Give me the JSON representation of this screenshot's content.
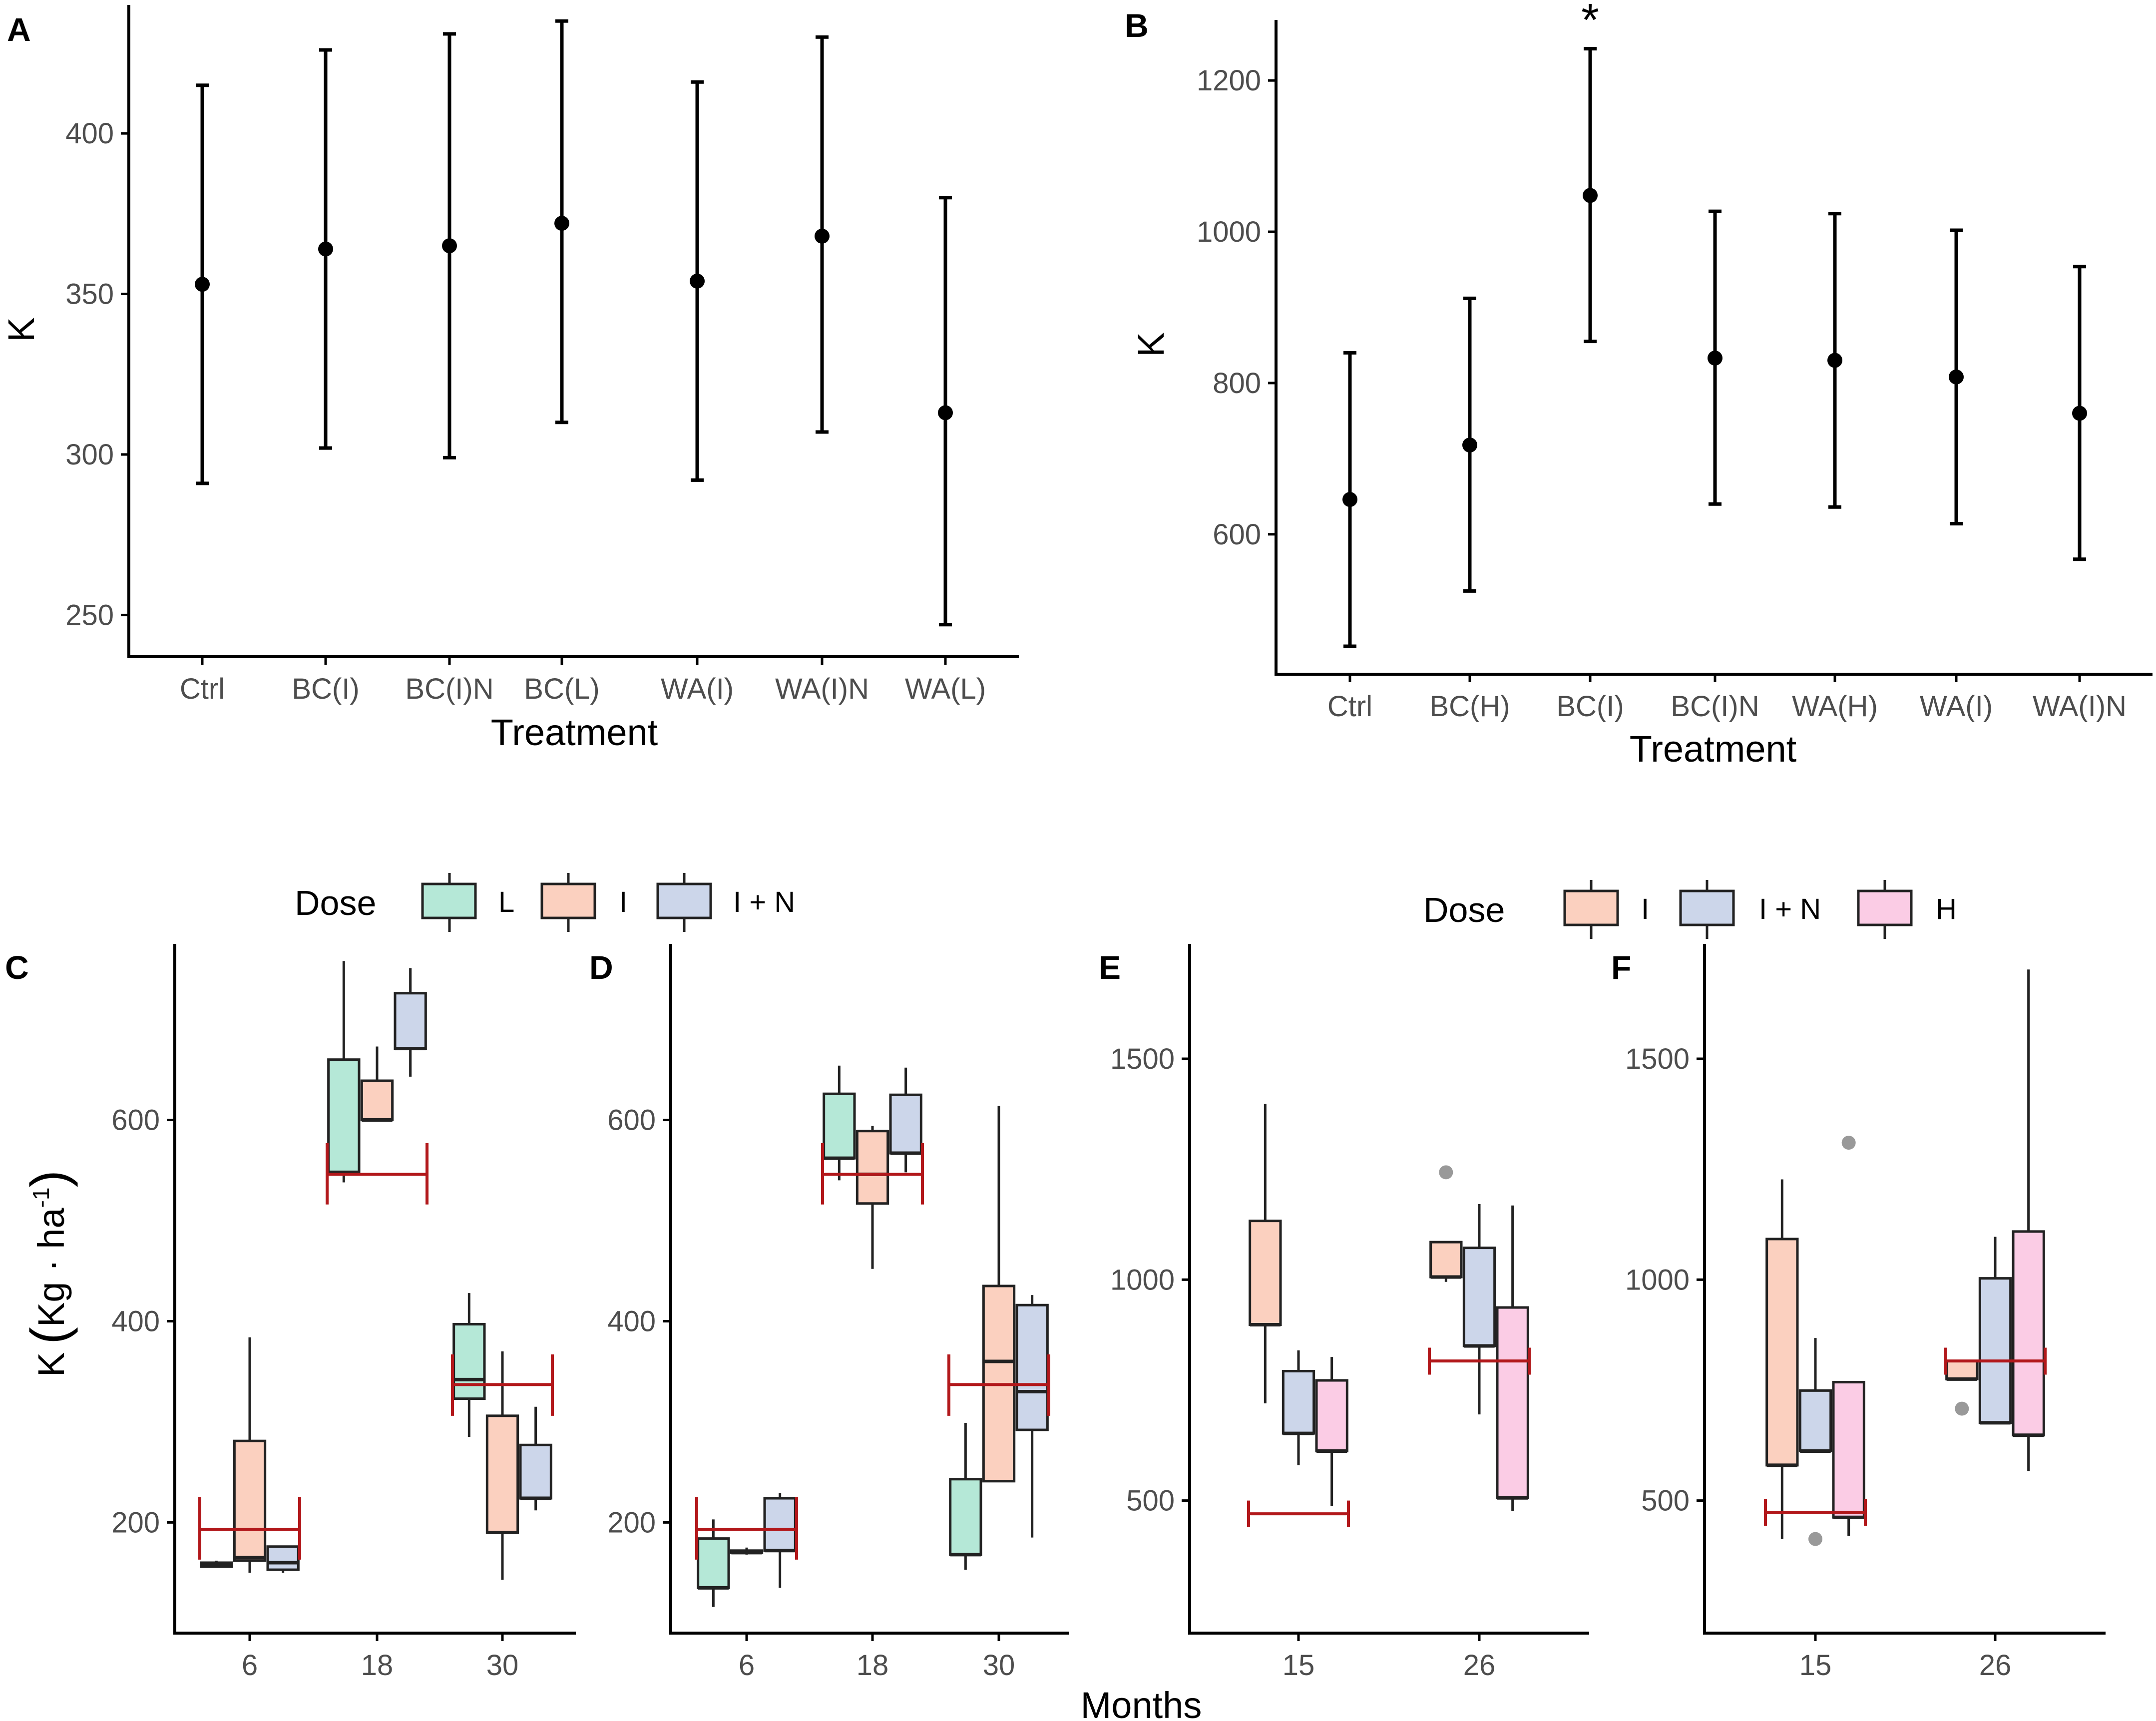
{
  "colors": {
    "L": "#b5e8d7",
    "I": "#fbd0bf",
    "I + N": "#ccd6ea",
    "H": "#fbcce5",
    "ref": "#b2181b",
    "outlier": "#999999",
    "ink": "#222222"
  },
  "legends": {
    "cd": {
      "title": "Dose",
      "items": [
        "L",
        "I",
        "I + N"
      ]
    },
    "ef": {
      "title": "Dose",
      "items": [
        "I",
        "I + N",
        "H"
      ]
    }
  },
  "shared_xlabel": "Months",
  "chart_data": [
    {
      "panel": "A",
      "type": "errorbar",
      "xlabel": "Treatment",
      "ylabel": "K",
      "categories": [
        "Ctrl",
        "BC(I)",
        "BC(I)N",
        "BC(L)",
        "WA(I)",
        "WA(I)N",
        "WA(L)"
      ],
      "ylim": [
        237,
        440
      ],
      "yticks": [
        250,
        300,
        350,
        400
      ],
      "mean": [
        353,
        364,
        365,
        372,
        354,
        368,
        313
      ],
      "lower": [
        291,
        302,
        299,
        310,
        292,
        307,
        247
      ],
      "upper": [
        415,
        426,
        431,
        435,
        416,
        430,
        380
      ]
    },
    {
      "panel": "B",
      "type": "errorbar",
      "xlabel": "Treatment",
      "ylabel": "K",
      "categories": [
        "Ctrl",
        "BC(H)",
        "BC(I)",
        "BC(I)N",
        "WA(H)",
        "WA(I)",
        "WA(I)N"
      ],
      "ylim": [
        415,
        1280
      ],
      "yticks": [
        600,
        800,
        1000,
        1200
      ],
      "mean": [
        646,
        718,
        1048,
        833,
        830,
        808,
        760
      ],
      "lower": [
        452,
        525,
        855,
        640,
        636,
        614,
        567
      ],
      "upper": [
        840,
        912,
        1242,
        1027,
        1024,
        1002,
        954
      ],
      "annotations": [
        {
          "category": "BC(I)",
          "text": "*"
        }
      ]
    },
    {
      "panel": "C",
      "type": "box",
      "ylabel": "K (Kg · ha-1)",
      "ylabel_main": "K",
      "ylabel_unit": "Kg · ha",
      "ylabel_exp": "-1",
      "categories": [
        "6",
        "18",
        "30"
      ],
      "ylim": [
        90,
        775
      ],
      "yticks": [
        200,
        400,
        600
      ],
      "series": [
        {
          "name": "L",
          "boxes": [
            {
              "q1": 156,
              "median": 158,
              "q3": 160,
              "lo": 156,
              "hi": 162
            },
            {
              "q1": 548,
              "median": 548,
              "q3": 660,
              "lo": 538,
              "hi": 758
            },
            {
              "q1": 323,
              "median": 342,
              "q3": 397,
              "lo": 285,
              "hi": 428
            }
          ]
        },
        {
          "name": "I",
          "boxes": [
            {
              "q1": 162,
              "median": 165,
              "q3": 281,
              "lo": 150,
              "hi": 384
            },
            {
              "q1": 600,
              "median": 600,
              "q3": 639,
              "lo": 600,
              "hi": 673
            },
            {
              "q1": 190,
              "median": 190,
              "q3": 306,
              "lo": 143,
              "hi": 370
            }
          ]
        },
        {
          "name": "I + N",
          "boxes": [
            {
              "q1": 153,
              "median": 160,
              "q3": 176,
              "lo": 150,
              "hi": 176
            },
            {
              "q1": 671,
              "median": 671,
              "q3": 726,
              "lo": 643,
              "hi": 751
            },
            {
              "q1": 224,
              "median": 224,
              "q3": 277,
              "lo": 212,
              "hi": 315
            }
          ]
        }
      ],
      "reference": [
        {
          "category": "6",
          "value": 193,
          "lo": 163,
          "hi": 225
        },
        {
          "category": "18",
          "value": 546,
          "lo": 516,
          "hi": 577
        },
        {
          "category": "30",
          "value": 337,
          "lo": 306,
          "hi": 367
        }
      ]
    },
    {
      "panel": "D",
      "type": "box",
      "categories": [
        "6",
        "18",
        "30"
      ],
      "ylim": [
        90,
        775
      ],
      "yticks": [
        200,
        400,
        600
      ],
      "series": [
        {
          "name": "L",
          "boxes": [
            {
              "q1": 135,
              "median": 135,
              "q3": 184,
              "lo": 116,
              "hi": 203
            },
            {
              "q1": 562,
              "median": 562,
              "q3": 626,
              "lo": 540,
              "hi": 654
            },
            {
              "q1": 168,
              "median": 168,
              "q3": 243,
              "lo": 153,
              "hi": 299
            }
          ]
        },
        {
          "name": "I",
          "boxes": [
            {
              "q1": 170,
              "median": 170,
              "q3": 172,
              "lo": 168,
              "hi": 175
            },
            {
              "q1": 517,
              "median": 546,
              "q3": 589,
              "lo": 452,
              "hi": 594
            },
            {
              "q1": 241,
              "median": 360,
              "q3": 435,
              "lo": 241,
              "hi": 614
            }
          ]
        },
        {
          "name": "I + N",
          "boxes": [
            {
              "q1": 172,
              "median": 172,
              "q3": 224,
              "lo": 135,
              "hi": 229
            },
            {
              "q1": 567,
              "median": 567,
              "q3": 625,
              "lo": 548,
              "hi": 652
            },
            {
              "q1": 292,
              "median": 330,
              "q3": 416,
              "lo": 185,
              "hi": 426
            }
          ]
        }
      ],
      "reference": [
        {
          "category": "6",
          "value": 193,
          "lo": 163,
          "hi": 225
        },
        {
          "category": "18",
          "value": 546,
          "lo": 516,
          "hi": 577
        },
        {
          "category": "30",
          "value": 337,
          "lo": 306,
          "hi": 367
        }
      ]
    },
    {
      "panel": "E",
      "type": "box",
      "categories": [
        "15",
        "26"
      ],
      "ylim": [
        200,
        1760
      ],
      "yticks": [
        500,
        1000,
        1500
      ],
      "series": [
        {
          "name": "I",
          "boxes": [
            {
              "q1": 898,
              "median": 898,
              "q3": 1133,
              "lo": 720,
              "hi": 1398
            },
            {
              "q1": 1006,
              "median": 1006,
              "q3": 1085,
              "lo": 995,
              "hi": 1085,
              "outliers": [
                1243
              ]
            }
          ]
        },
        {
          "name": "I + N",
          "boxes": [
            {
              "q1": 652,
              "median": 652,
              "q3": 793,
              "lo": 580,
              "hi": 840
            },
            {
              "q1": 850,
              "median": 850,
              "q3": 1072,
              "lo": 695,
              "hi": 1171
            }
          ]
        },
        {
          "name": "H",
          "boxes": [
            {
              "q1": 612,
              "median": 612,
              "q3": 772,
              "lo": 488,
              "hi": 825
            },
            {
              "q1": 506,
              "median": 506,
              "q3": 937,
              "lo": 477,
              "hi": 1168
            }
          ]
        }
      ],
      "reference": [
        {
          "category": "15",
          "value": 470,
          "lo": 440,
          "hi": 500
        },
        {
          "category": "26",
          "value": 816,
          "lo": 785,
          "hi": 846
        }
      ]
    },
    {
      "panel": "F",
      "type": "box",
      "categories": [
        "15",
        "26"
      ],
      "ylim": [
        200,
        1760
      ],
      "yticks": [
        500,
        1000,
        1500
      ],
      "series": [
        {
          "name": "I",
          "boxes": [
            {
              "q1": 580,
              "median": 580,
              "q3": 1092,
              "lo": 413,
              "hi": 1227
            },
            {
              "q1": 775,
              "median": 775,
              "q3": 816,
              "lo": 775,
              "hi": 816,
              "outliers": [
                708
              ]
            }
          ]
        },
        {
          "name": "I + N",
          "boxes": [
            {
              "q1": 612,
              "median": 612,
              "q3": 749,
              "lo": 612,
              "hi": 868,
              "outliers": [
                413
              ]
            },
            {
              "q1": 676,
              "median": 676,
              "q3": 1003,
              "lo": 676,
              "hi": 1097
            }
          ]
        },
        {
          "name": "H",
          "boxes": [
            {
              "q1": 462,
              "median": 462,
              "q3": 768,
              "lo": 420,
              "hi": 768,
              "outliers": [
                1310
              ]
            },
            {
              "q1": 648,
              "median": 648,
              "q3": 1109,
              "lo": 567,
              "hi": 1702
            }
          ]
        }
      ],
      "reference": [
        {
          "category": "15",
          "value": 473,
          "lo": 443,
          "hi": 503
        },
        {
          "category": "26",
          "value": 816,
          "lo": 785,
          "hi": 846
        }
      ]
    }
  ]
}
